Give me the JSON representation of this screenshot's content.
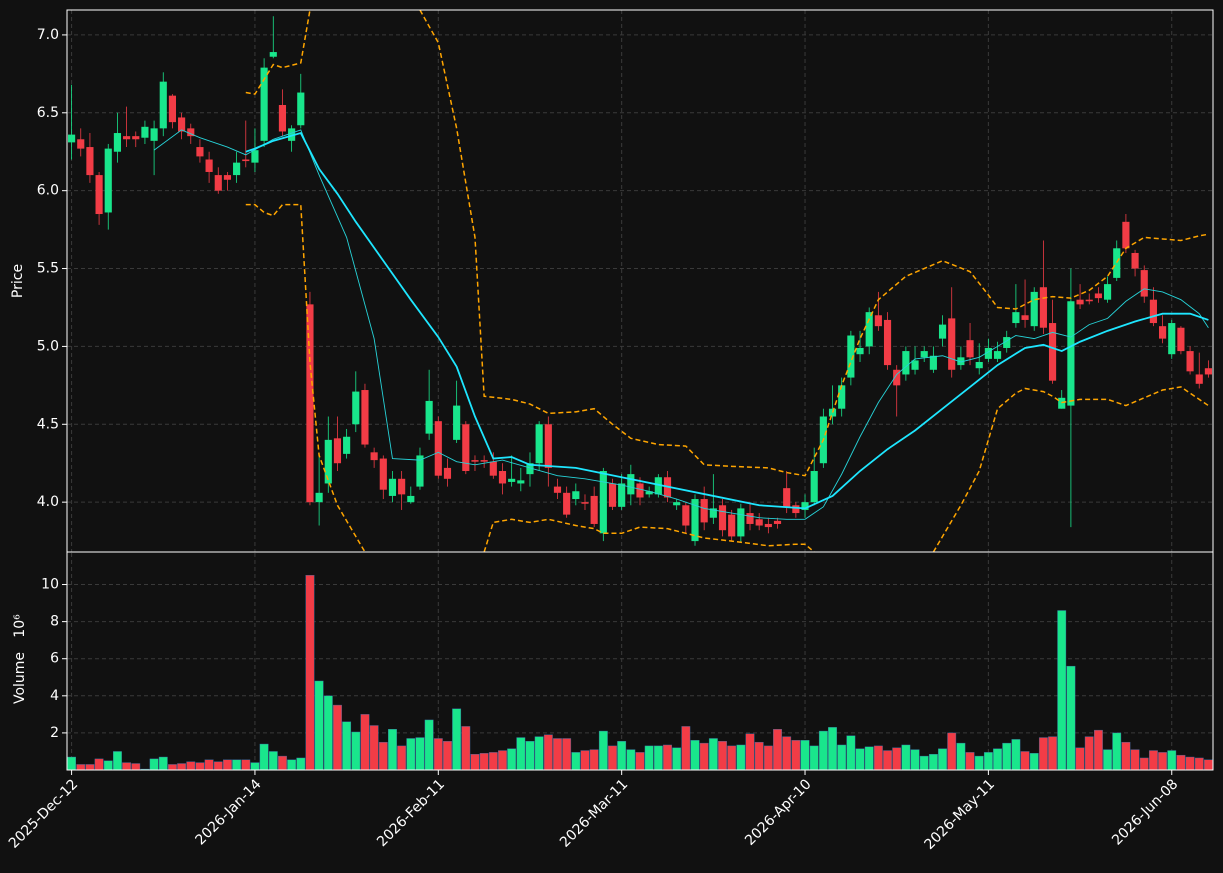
{
  "chart_data": {
    "type": "candlestick",
    "ylabel": "Price",
    "ylim": [
      3.68,
      7.16
    ],
    "yticks": [
      {
        "value": 4,
        "label": "4.0"
      },
      {
        "value": 4.5,
        "label": "4.5"
      },
      {
        "value": 5,
        "label": "5.0"
      },
      {
        "value": 5.5,
        "label": "5.5"
      },
      {
        "value": 6,
        "label": "6.0"
      },
      {
        "value": 6.5,
        "label": "6.5"
      },
      {
        "value": 7,
        "label": "7.0"
      }
    ],
    "grid": true,
    "up_color": "#19e68c",
    "down_color": "#f23c46",
    "categories": [
      "2025-Dec-12",
      null,
      null,
      null,
      null,
      null,
      null,
      null,
      null,
      null,
      null,
      null,
      null,
      null,
      null,
      null,
      null,
      null,
      null,
      null,
      "2026-Jan-14",
      null,
      null,
      null,
      null,
      null,
      null,
      null,
      null,
      null,
      null,
      null,
      null,
      null,
      null,
      null,
      null,
      null,
      null,
      null,
      "2026-Feb-11",
      null,
      null,
      null,
      null,
      null,
      null,
      null,
      null,
      null,
      null,
      null,
      null,
      null,
      null,
      null,
      null,
      null,
      null,
      null,
      "2026-Mar-11",
      null,
      null,
      null,
      null,
      null,
      null,
      null,
      null,
      null,
      null,
      null,
      null,
      null,
      null,
      null,
      null,
      null,
      null,
      null,
      "2026-Apr-10",
      null,
      null,
      null,
      null,
      null,
      null,
      null,
      null,
      null,
      null,
      null,
      null,
      null,
      null,
      null,
      null,
      null,
      null,
      null,
      "2026-May-11",
      null,
      null,
      null,
      null,
      null,
      null,
      null,
      null,
      null,
      null,
      null,
      null,
      null,
      null,
      null,
      null,
      null,
      null,
      null,
      "2026-Jun-08",
      null,
      null,
      null,
      null
    ],
    "open": [
      6.31,
      6.33,
      6.28,
      6.1,
      5.86,
      6.25,
      6.35,
      6.35,
      6.34,
      6.32,
      6.4,
      6.61,
      6.47,
      6.4,
      6.28,
      6.2,
      6.1,
      6.1,
      6.1,
      6.2,
      6.18,
      6.32,
      6.86,
      6.55,
      6.32,
      6.42,
      5.27,
      4.0,
      4.12,
      4.41,
      4.31,
      4.5,
      4.72,
      4.32,
      4.28,
      4.04,
      4.15,
      4.0,
      4.1,
      4.44,
      4.52,
      4.22,
      4.4,
      4.5,
      4.27,
      4.27,
      4.26,
      4.2,
      4.13,
      4.12,
      4.18,
      4.25,
      4.5,
      4.1,
      4.06,
      4.02,
      4.0,
      4.04,
      3.8,
      4.12,
      3.97,
      4.05,
      4.12,
      4.05,
      4.05,
      4.16,
      3.98,
      3.98,
      3.75,
      4.02,
      3.9,
      3.98,
      3.92,
      3.78,
      3.93,
      3.89,
      3.86,
      3.88,
      4.09,
      3.98,
      3.95,
      4.0,
      4.25,
      4.55,
      4.6,
      4.8,
      4.95,
      5.0,
      5.2,
      5.17,
      4.85,
      4.82,
      4.85,
      4.93,
      4.85,
      5.05,
      5.18,
      4.88,
      5.04,
      4.86,
      4.92,
      4.92,
      4.99,
      5.15,
      5.2,
      5.13,
      5.38,
      5.15,
      4.6,
      4.62,
      5.3,
      5.3,
      5.34,
      5.3,
      5.44,
      5.8,
      5.6,
      5.49,
      5.3,
      5.13,
      4.95,
      5.12,
      4.97,
      4.82,
      4.86
    ],
    "high": [
      6.68,
      6.4,
      6.37,
      6.12,
      6.3,
      6.5,
      6.54,
      6.38,
      6.45,
      6.45,
      6.76,
      6.62,
      6.5,
      6.43,
      6.33,
      6.25,
      6.15,
      6.12,
      6.25,
      6.45,
      6.4,
      6.85,
      7.12,
      6.65,
      6.42,
      6.75,
      5.35,
      4.3,
      4.55,
      4.55,
      4.47,
      4.84,
      4.76,
      4.35,
      4.3,
      4.2,
      4.2,
      4.1,
      4.35,
      4.85,
      4.55,
      4.28,
      4.78,
      4.52,
      4.3,
      4.3,
      4.32,
      4.25,
      4.3,
      4.22,
      4.32,
      4.52,
      4.55,
      4.15,
      4.1,
      4.12,
      4.05,
      4.1,
      4.22,
      4.15,
      4.18,
      4.24,
      4.16,
      4.1,
      4.18,
      4.2,
      4.02,
      4.0,
      4.05,
      4.1,
      4.18,
      4.02,
      3.95,
      3.99,
      4.0,
      3.93,
      3.9,
      3.9,
      4.2,
      4.0,
      4.05,
      4.35,
      4.6,
      4.75,
      4.8,
      5.1,
      5.1,
      5.25,
      5.35,
      5.22,
      4.88,
      5.0,
      5.0,
      5.0,
      5.0,
      5.2,
      5.38,
      5.0,
      5.15,
      5.02,
      5.05,
      5.03,
      5.1,
      5.4,
      5.43,
      5.38,
      5.68,
      5.3,
      4.72,
      5.5,
      5.4,
      5.34,
      5.38,
      5.45,
      5.68,
      5.85,
      5.62,
      5.52,
      5.38,
      5.2,
      5.17,
      5.13,
      5.0,
      4.96,
      4.91
    ],
    "low": [
      6.2,
      6.22,
      6.05,
      5.78,
      5.75,
      6.18,
      6.28,
      6.28,
      6.3,
      6.1,
      6.35,
      6.4,
      6.33,
      6.3,
      6.18,
      6.05,
      5.98,
      6.0,
      6.05,
      6.15,
      6.12,
      6.28,
      6.85,
      6.35,
      6.25,
      6.4,
      3.98,
      3.85,
      4.06,
      4.2,
      4.28,
      4.45,
      4.35,
      4.22,
      4.02,
      4.0,
      3.95,
      3.99,
      4.08,
      4.4,
      4.15,
      4.1,
      4.38,
      4.18,
      4.2,
      4.22,
      4.15,
      4.05,
      4.1,
      4.07,
      4.1,
      4.2,
      4.1,
      4.02,
      3.9,
      3.98,
      3.95,
      3.84,
      3.75,
      3.95,
      3.95,
      3.98,
      3.98,
      4.03,
      4.03,
      4.0,
      3.95,
      3.8,
      3.72,
      3.82,
      3.86,
      3.78,
      3.75,
      3.74,
      3.82,
      3.82,
      3.8,
      3.83,
      3.93,
      3.9,
      3.9,
      3.98,
      4.22,
      4.5,
      4.55,
      4.75,
      4.9,
      4.95,
      5.1,
      4.85,
      4.55,
      4.78,
      4.82,
      4.9,
      4.83,
      5.0,
      4.8,
      4.85,
      4.88,
      4.82,
      4.9,
      4.9,
      4.96,
      5.12,
      5.12,
      5.1,
      5.08,
      4.76,
      4.6,
      3.84,
      5.24,
      5.27,
      5.28,
      5.28,
      5.42,
      5.6,
      5.45,
      5.28,
      5.13,
      5.02,
      4.92,
      4.95,
      4.82,
      4.73,
      4.8
    ],
    "close": [
      6.36,
      6.27,
      6.1,
      5.85,
      6.27,
      6.37,
      6.33,
      6.33,
      6.41,
      6.4,
      6.7,
      6.44,
      6.38,
      6.35,
      6.22,
      6.12,
      6.0,
      6.07,
      6.18,
      6.19,
      6.26,
      6.79,
      6.89,
      6.38,
      6.4,
      6.63,
      4.0,
      4.06,
      4.4,
      4.25,
      4.42,
      4.71,
      4.37,
      4.27,
      4.08,
      4.15,
      4.05,
      4.04,
      4.3,
      4.65,
      4.17,
      4.15,
      4.62,
      4.2,
      4.26,
      4.26,
      4.17,
      4.12,
      4.15,
      4.14,
      4.25,
      4.5,
      4.22,
      4.06,
      3.92,
      4.07,
      3.99,
      3.86,
      4.2,
      3.97,
      4.12,
      4.18,
      4.03,
      4.07,
      4.16,
      4.03,
      4.0,
      3.85,
      4.02,
      3.87,
      3.96,
      3.82,
      3.78,
      3.96,
      3.86,
      3.85,
      3.84,
      3.86,
      3.97,
      3.93,
      4.0,
      4.2,
      4.55,
      4.6,
      4.75,
      5.07,
      4.99,
      5.22,
      5.13,
      4.88,
      4.75,
      4.97,
      4.91,
      4.97,
      4.94,
      5.14,
      4.85,
      4.93,
      4.93,
      4.9,
      4.99,
      4.97,
      5.06,
      5.22,
      5.17,
      5.35,
      5.12,
      4.78,
      4.67,
      5.29,
      5.27,
      5.29,
      5.31,
      5.4,
      5.63,
      5.63,
      5.5,
      5.32,
      5.15,
      5.05,
      5.15,
      4.97,
      4.84,
      4.76,
      4.82
    ],
    "overlays": [
      {
        "color": "#27d3d8",
        "width": 0.9,
        "dash": false,
        "x": [
          9,
          12,
          14,
          17,
          19,
          22,
          25,
          27,
          30,
          33,
          35,
          38,
          40,
          42,
          44,
          47,
          50,
          53,
          56,
          60,
          63,
          66,
          69,
          72,
          75,
          78,
          80,
          82,
          84,
          86,
          88,
          90,
          92,
          95,
          97,
          99,
          101,
          103,
          105,
          107,
          109,
          111,
          113,
          115,
          117,
          119,
          121,
          123,
          124
        ],
        "values": [
          6.26,
          6.39,
          6.34,
          6.28,
          6.23,
          6.33,
          6.39,
          6.1,
          5.7,
          5.05,
          4.28,
          4.27,
          4.32,
          4.26,
          4.24,
          4.27,
          4.22,
          4.17,
          4.15,
          4.11,
          4.07,
          4.02,
          3.96,
          3.93,
          3.9,
          3.89,
          3.89,
          3.97,
          4.18,
          4.42,
          4.64,
          4.82,
          4.92,
          4.94,
          4.9,
          4.93,
          5.0,
          5.07,
          5.05,
          5.09,
          5.06,
          5.14,
          5.18,
          5.29,
          5.37,
          5.35,
          5.3,
          5.21,
          5.12
        ]
      },
      {
        "color": "#1ee6ff",
        "width": 1.8,
        "dash": false,
        "x": [
          19,
          20,
          22,
          25,
          27,
          29,
          31,
          34,
          37,
          40,
          42,
          44,
          46,
          48,
          50,
          55,
          60,
          65,
          70,
          75,
          80,
          83,
          86,
          89,
          92,
          95,
          98,
          101,
          104,
          106,
          108,
          110,
          113,
          116,
          119,
          122,
          124
        ],
        "values": [
          6.25,
          6.27,
          6.32,
          6.37,
          6.14,
          5.98,
          5.8,
          5.55,
          5.3,
          5.06,
          4.87,
          4.55,
          4.28,
          4.29,
          4.24,
          4.22,
          4.16,
          4.1,
          4.04,
          3.98,
          3.96,
          4.04,
          4.2,
          4.34,
          4.46,
          4.6,
          4.74,
          4.88,
          4.99,
          5.01,
          4.97,
          5.03,
          5.1,
          5.16,
          5.21,
          5.21,
          5.17
        ]
      },
      {
        "color": "#ffa500",
        "width": 1.5,
        "dash": true,
        "x": [
          19,
          20,
          22,
          23,
          25,
          26,
          30,
          38,
          40,
          42,
          44,
          45,
          48,
          50,
          52,
          55,
          57,
          59,
          61,
          64,
          67,
          69,
          72,
          76,
          78,
          80,
          82,
          84,
          86,
          88,
          91,
          95,
          98,
          100,
          101,
          103,
          105,
          107,
          109,
          111,
          113,
          115,
          117,
          119,
          121,
          123,
          124
        ],
        "values": [
          6.63,
          6.62,
          6.81,
          6.79,
          6.82,
          7.16,
          null,
          7.16,
          6.95,
          6.4,
          5.7,
          4.68,
          4.66,
          4.63,
          4.57,
          4.58,
          4.6,
          4.5,
          4.41,
          4.37,
          4.36,
          4.24,
          4.23,
          4.22,
          4.19,
          4.17,
          4.4,
          4.75,
          5.05,
          5.3,
          5.45,
          5.55,
          5.48,
          5.33,
          5.25,
          5.24,
          5.3,
          5.32,
          5.31,
          5.36,
          5.45,
          5.63,
          5.7,
          5.69,
          5.68,
          5.71,
          5.72
        ]
      },
      {
        "color": "#ffa500",
        "width": 1.5,
        "dash": true,
        "x": [
          19,
          20,
          21,
          22,
          23,
          25,
          26,
          27,
          29,
          31,
          32,
          38,
          45,
          46,
          48,
          50,
          52,
          55,
          57,
          58,
          60,
          62,
          65,
          67,
          69,
          72,
          76,
          79,
          80,
          81,
          88,
          94,
          97,
          99,
          100,
          101,
          103,
          104,
          106,
          107,
          108,
          110,
          113,
          115,
          117,
          119,
          121,
          123,
          124
        ],
        "values": [
          5.91,
          5.91,
          5.86,
          5.84,
          5.91,
          5.91,
          4.9,
          4.3,
          3.98,
          3.78,
          3.68,
          null,
          3.68,
          3.87,
          3.89,
          3.87,
          3.89,
          3.85,
          3.83,
          3.8,
          3.8,
          3.84,
          3.83,
          3.8,
          3.77,
          3.75,
          3.72,
          3.73,
          3.73,
          3.68,
          null,
          3.68,
          3.98,
          4.2,
          4.4,
          4.6,
          4.7,
          4.73,
          4.71,
          4.68,
          4.64,
          4.66,
          4.66,
          4.62,
          4.67,
          4.72,
          4.74,
          4.66,
          4.62
        ]
      }
    ],
    "volume": {
      "ylabel": "Volume",
      "offset_label": "10⁶",
      "ylim": [
        0,
        11.7
      ],
      "yticks": [
        2,
        4,
        6,
        8,
        10
      ],
      "values": [
        0.7,
        0.3,
        0.3,
        0.6,
        0.5,
        1.0,
        0.4,
        0.35,
        0.05,
        0.6,
        0.7,
        0.3,
        0.35,
        0.45,
        0.4,
        0.55,
        0.45,
        0.55,
        0.55,
        0.55,
        0.4,
        1.4,
        1.0,
        0.75,
        0.55,
        0.65,
        10.5,
        4.8,
        4.0,
        3.5,
        2.6,
        2.05,
        3.0,
        2.4,
        1.5,
        2.2,
        1.3,
        1.7,
        1.75,
        2.7,
        1.7,
        1.55,
        3.3,
        2.35,
        0.85,
        0.9,
        0.95,
        1.05,
        1.15,
        1.75,
        1.55,
        1.8,
        1.9,
        1.7,
        1.7,
        0.95,
        1.05,
        1.1,
        2.1,
        1.3,
        1.55,
        1.1,
        0.95,
        1.3,
        1.3,
        1.35,
        1.2,
        2.35,
        1.6,
        1.45,
        1.7,
        1.55,
        1.3,
        1.35,
        1.95,
        1.5,
        1.3,
        2.2,
        1.8,
        1.6,
        1.6,
        1.3,
        2.1,
        2.3,
        1.35,
        1.85,
        1.15,
        1.25,
        1.3,
        1.05,
        1.2,
        1.35,
        1.1,
        0.75,
        0.85,
        1.15,
        2.0,
        1.45,
        0.95,
        0.75,
        0.95,
        1.15,
        1.45,
        1.65,
        1.0,
        0.9,
        1.75,
        1.8,
        8.6,
        5.6,
        1.2,
        1.8,
        2.15,
        1.1,
        2.0,
        1.5,
        1.1,
        0.65,
        1.05,
        0.95,
        1.05,
        0.8,
        0.7,
        0.65,
        0.55
      ]
    }
  }
}
